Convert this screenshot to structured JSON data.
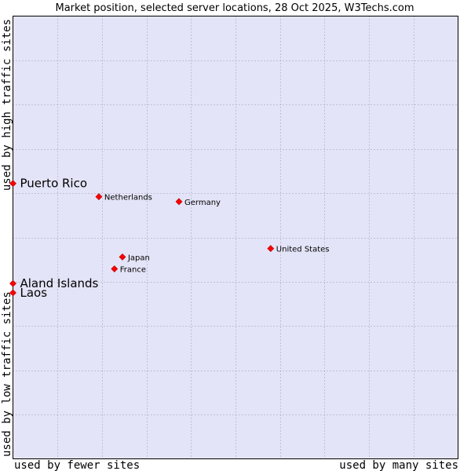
{
  "chart_data": {
    "type": "scatter",
    "title": "Market position, selected server locations, 28 Oct 2025, W3Techs.com",
    "xlabel_left": "used by fewer sites",
    "xlabel_right": "used by many sites",
    "ylabel_bottom": "used by low traffic sites",
    "ylabel_top": "used by high traffic sites",
    "xlim": [
      0,
      100
    ],
    "ylim": [
      0,
      100
    ],
    "grid": true,
    "marker_color": "#ff0000",
    "plot_background": "#e4e4f8",
    "points": [
      {
        "label": "Puerto Rico",
        "x": 0.0,
        "y": 62.2,
        "emphasis": true
      },
      {
        "label": "Netherlands",
        "x": 19.3,
        "y": 59.2,
        "emphasis": false
      },
      {
        "label": "Germany",
        "x": 37.3,
        "y": 58.1,
        "emphasis": false
      },
      {
        "label": "United States",
        "x": 57.9,
        "y": 47.5,
        "emphasis": false
      },
      {
        "label": "Japan",
        "x": 24.6,
        "y": 45.6,
        "emphasis": false
      },
      {
        "label": "France",
        "x": 22.8,
        "y": 42.9,
        "emphasis": false
      },
      {
        "label": "Aland Islands",
        "x": 0.0,
        "y": 39.6,
        "emphasis": true
      },
      {
        "label": "Laos",
        "x": 0.0,
        "y": 37.5,
        "emphasis": true
      }
    ]
  }
}
